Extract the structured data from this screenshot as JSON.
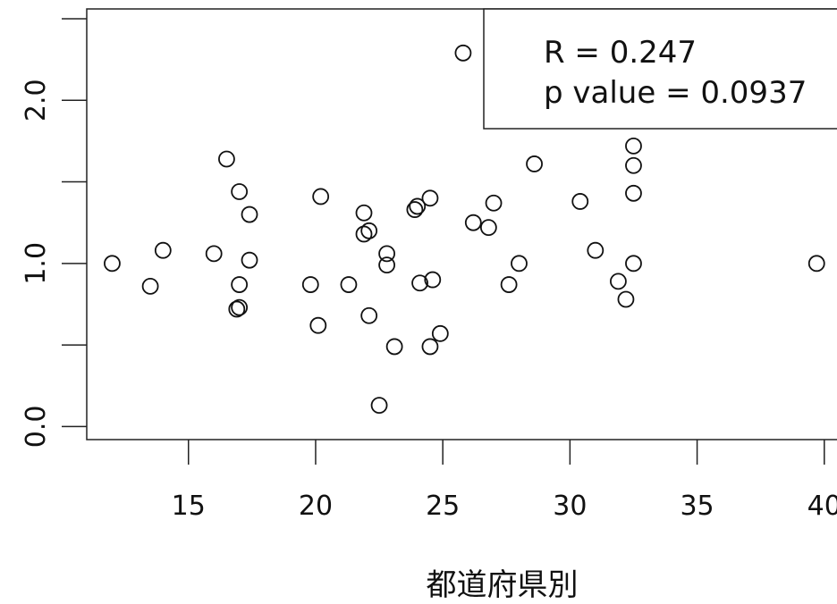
{
  "chart_data": {
    "type": "scatter",
    "xlabel": "都道府県別",
    "ylabel": "",
    "title": "",
    "xlim": [
      11,
      40.5
    ],
    "ylim": [
      -0.08,
      2.56
    ],
    "x_ticks": [
      "15",
      "20",
      "25",
      "30",
      "35",
      "40"
    ],
    "x_tick_values": [
      15,
      20,
      25,
      30,
      35,
      40
    ],
    "y_ticks": [
      "0.0",
      "",
      "1.0",
      "",
      "2.0",
      ""
    ],
    "y_tick_values": [
      0.0,
      0.5,
      1.0,
      1.5,
      2.0,
      2.5
    ],
    "legend": {
      "position": "top-right",
      "lines": [
        "R = 0.247",
        "p value = 0.0937"
      ]
    },
    "grid": false,
    "marker": "open-circle",
    "points": [
      {
        "x": 12.0,
        "y": 1.0
      },
      {
        "x": 13.5,
        "y": 0.86
      },
      {
        "x": 14.0,
        "y": 1.08
      },
      {
        "x": 16.0,
        "y": 1.06
      },
      {
        "x": 16.5,
        "y": 1.64
      },
      {
        "x": 17.0,
        "y": 1.44
      },
      {
        "x": 17.0,
        "y": 0.87
      },
      {
        "x": 16.9,
        "y": 0.72
      },
      {
        "x": 17.0,
        "y": 0.73
      },
      {
        "x": 17.4,
        "y": 1.3
      },
      {
        "x": 17.4,
        "y": 1.02
      },
      {
        "x": 19.8,
        "y": 0.87
      },
      {
        "x": 20.1,
        "y": 0.62
      },
      {
        "x": 20.2,
        "y": 1.41
      },
      {
        "x": 21.3,
        "y": 0.87
      },
      {
        "x": 21.9,
        "y": 1.31
      },
      {
        "x": 21.9,
        "y": 1.18
      },
      {
        "x": 22.1,
        "y": 1.2
      },
      {
        "x": 22.1,
        "y": 0.68
      },
      {
        "x": 22.5,
        "y": 0.13
      },
      {
        "x": 22.8,
        "y": 1.06
      },
      {
        "x": 22.8,
        "y": 0.99
      },
      {
        "x": 23.1,
        "y": 0.49
      },
      {
        "x": 23.9,
        "y": 1.33
      },
      {
        "x": 24.0,
        "y": 1.35
      },
      {
        "x": 24.1,
        "y": 0.88
      },
      {
        "x": 24.5,
        "y": 1.4
      },
      {
        "x": 24.5,
        "y": 0.49
      },
      {
        "x": 24.6,
        "y": 0.9
      },
      {
        "x": 24.9,
        "y": 0.57
      },
      {
        "x": 25.8,
        "y": 2.29
      },
      {
        "x": 26.2,
        "y": 1.25
      },
      {
        "x": 26.8,
        "y": 1.22
      },
      {
        "x": 27.0,
        "y": 1.37
      },
      {
        "x": 27.6,
        "y": 0.87
      },
      {
        "x": 28.0,
        "y": 1.0
      },
      {
        "x": 28.6,
        "y": 1.61
      },
      {
        "x": 30.4,
        "y": 1.38
      },
      {
        "x": 31.0,
        "y": 1.08
      },
      {
        "x": 31.9,
        "y": 0.89
      },
      {
        "x": 32.2,
        "y": 0.78
      },
      {
        "x": 32.5,
        "y": 1.72
      },
      {
        "x": 32.5,
        "y": 1.6
      },
      {
        "x": 32.5,
        "y": 1.43
      },
      {
        "x": 32.5,
        "y": 1.0
      },
      {
        "x": 39.7,
        "y": 1.0
      }
    ]
  }
}
